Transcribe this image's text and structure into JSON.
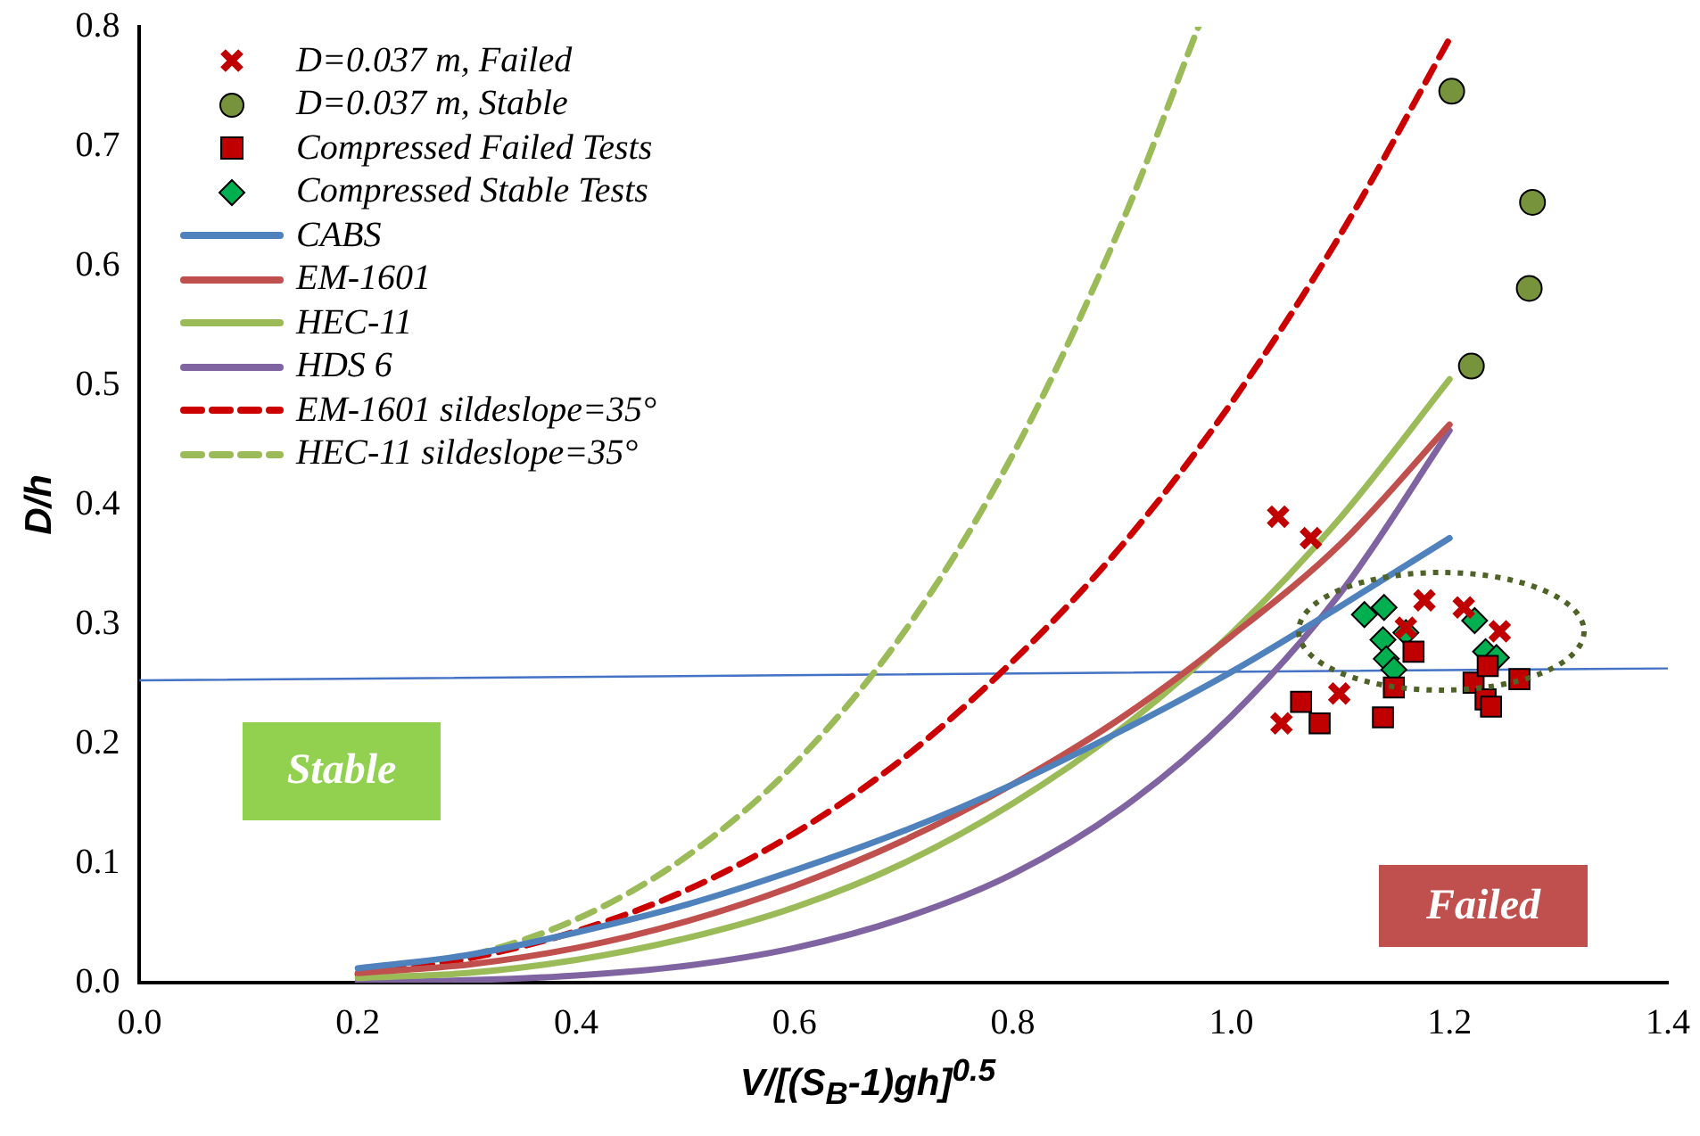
{
  "chart_data": {
    "type": "line",
    "xlabel": "V/[(S$_{B}$-1)gh]$^{0.5}$",
    "ylabel": "D/h",
    "xlim": [
      0,
      1.4
    ],
    "ylim": [
      0,
      0.8
    ],
    "xticks": [
      {
        "value": 0,
        "label": "0.0"
      },
      {
        "value": 0.2,
        "label": "0.2"
      },
      {
        "value": 0.4,
        "label": "0.4"
      },
      {
        "value": 0.6,
        "label": "0.6"
      },
      {
        "value": 0.8,
        "label": "0.8"
      },
      {
        "value": 1,
        "label": "1.0"
      },
      {
        "value": 1.2,
        "label": "1.2"
      },
      {
        "value": 1.4,
        "label": "1.4"
      }
    ],
    "yticks": [
      {
        "value": 0,
        "label": "0.0"
      },
      {
        "value": 0.1,
        "label": "0.1"
      },
      {
        "value": 0.2,
        "label": "0.2"
      },
      {
        "value": 0.3,
        "label": "0.3"
      },
      {
        "value": 0.4,
        "label": "0.4"
      },
      {
        "value": 0.5,
        "label": "0.5"
      },
      {
        "value": 0.6,
        "label": "0.6"
      },
      {
        "value": 0.7,
        "label": "0.7"
      },
      {
        "value": 0.8,
        "label": "0.8"
      }
    ],
    "grid": false,
    "legend": "top left",
    "annotations": [
      "Stable",
      "Failed"
    ],
    "series": [
      {
        "name": "D=0.037 m, Failed",
        "type": "scatter",
        "marker": "cross",
        "color": "#c00000",
        "x": [
          1.043,
          1.073,
          1.046,
          1.099,
          1.16,
          1.177,
          1.213,
          1.246
        ],
        "values": [
          0.39,
          0.372,
          0.217,
          0.242,
          0.297,
          0.32,
          0.314,
          0.294
        ]
      },
      {
        "name": "D=0.037 m, Stable",
        "type": "scatter",
        "marker": "circle",
        "color": "#77933c",
        "x": [
          1.202,
          1.22,
          1.273,
          1.276
        ],
        "values": [
          0.746,
          0.516,
          0.581,
          0.653
        ]
      },
      {
        "name": "Compressed Failed Tests",
        "type": "scatter",
        "marker": "square",
        "color": "#c00000",
        "x": [
          1.064,
          1.081,
          1.139,
          1.149,
          1.167,
          1.222,
          1.233,
          1.238,
          1.264,
          1.235
        ],
        "values": [
          0.235,
          0.217,
          0.222,
          0.247,
          0.277,
          0.251,
          0.237,
          0.231,
          0.254,
          0.265
        ]
      },
      {
        "name": "Compressed Stable Tests",
        "type": "scatter",
        "marker": "diamond",
        "color": "#00b050",
        "x": [
          1.122,
          1.14,
          1.139,
          1.16,
          1.142,
          1.149,
          1.223,
          1.233,
          1.243
        ],
        "values": [
          0.308,
          0.314,
          0.287,
          0.293,
          0.271,
          0.262,
          0.303,
          0.277,
          0.272
        ]
      },
      {
        "name": "CABS",
        "color": "#4f81bd",
        "x": [
          0.2,
          0.3,
          0.4,
          0.5,
          0.6,
          0.7,
          0.8,
          0.9,
          1.0,
          1.1,
          1.2
        ],
        "values": [
          0.012,
          0.023,
          0.042,
          0.065,
          0.094,
          0.127,
          0.166,
          0.211,
          0.26,
          0.315,
          0.372
        ]
      },
      {
        "name": "EM-1601",
        "color": "#c0504d",
        "x": [
          0.2,
          0.3,
          0.4,
          0.5,
          0.6,
          0.7,
          0.8,
          0.9,
          1.0,
          1.1,
          1.2
        ],
        "values": [
          0.008,
          0.015,
          0.029,
          0.051,
          0.081,
          0.119,
          0.166,
          0.222,
          0.29,
          0.367,
          0.467
        ]
      },
      {
        "name": "HEC-11",
        "color": "#9bbb59",
        "x": [
          0.2,
          0.3,
          0.4,
          0.5,
          0.6,
          0.7,
          0.8,
          0.9,
          1.0,
          1.1,
          1.2
        ],
        "values": [
          0.004,
          0.008,
          0.019,
          0.037,
          0.063,
          0.1,
          0.15,
          0.213,
          0.292,
          0.389,
          0.505
        ]
      },
      {
        "name": "HDS 6",
        "color": "#8064a2",
        "x": [
          0.2,
          0.3,
          0.4,
          0.5,
          0.6,
          0.7,
          0.8,
          0.9,
          1.0,
          1.1,
          1.2
        ],
        "values": [
          0.001,
          0.002,
          0.006,
          0.014,
          0.029,
          0.054,
          0.091,
          0.146,
          0.223,
          0.326,
          0.462
        ]
      },
      {
        "name": "EM-1601 sildeslope=35°",
        "line_style": "dashed",
        "color": "#cc0000",
        "x": [
          0.2,
          0.3,
          0.4,
          0.5,
          0.6,
          0.7,
          0.8,
          0.9,
          1.0,
          1.1,
          1.2
        ],
        "values": [
          0.007,
          0.02,
          0.043,
          0.077,
          0.125,
          0.188,
          0.269,
          0.366,
          0.485,
          0.626,
          0.79
        ]
      },
      {
        "name": "HEC-11 sildeslope=35°",
        "line_style": "dashed",
        "color": "#9bbb59",
        "x": [
          0.2,
          0.3,
          0.4,
          0.5,
          0.6,
          0.7,
          0.8,
          0.9,
          0.97
        ],
        "values": [
          0.006,
          0.022,
          0.053,
          0.105,
          0.183,
          0.293,
          0.442,
          0.636,
          0.8
        ]
      },
      {
        "color": "#4472c4",
        "x": [
          0,
          1.4
        ],
        "values": [
          0.253,
          0.263
        ]
      }
    ]
  }
}
